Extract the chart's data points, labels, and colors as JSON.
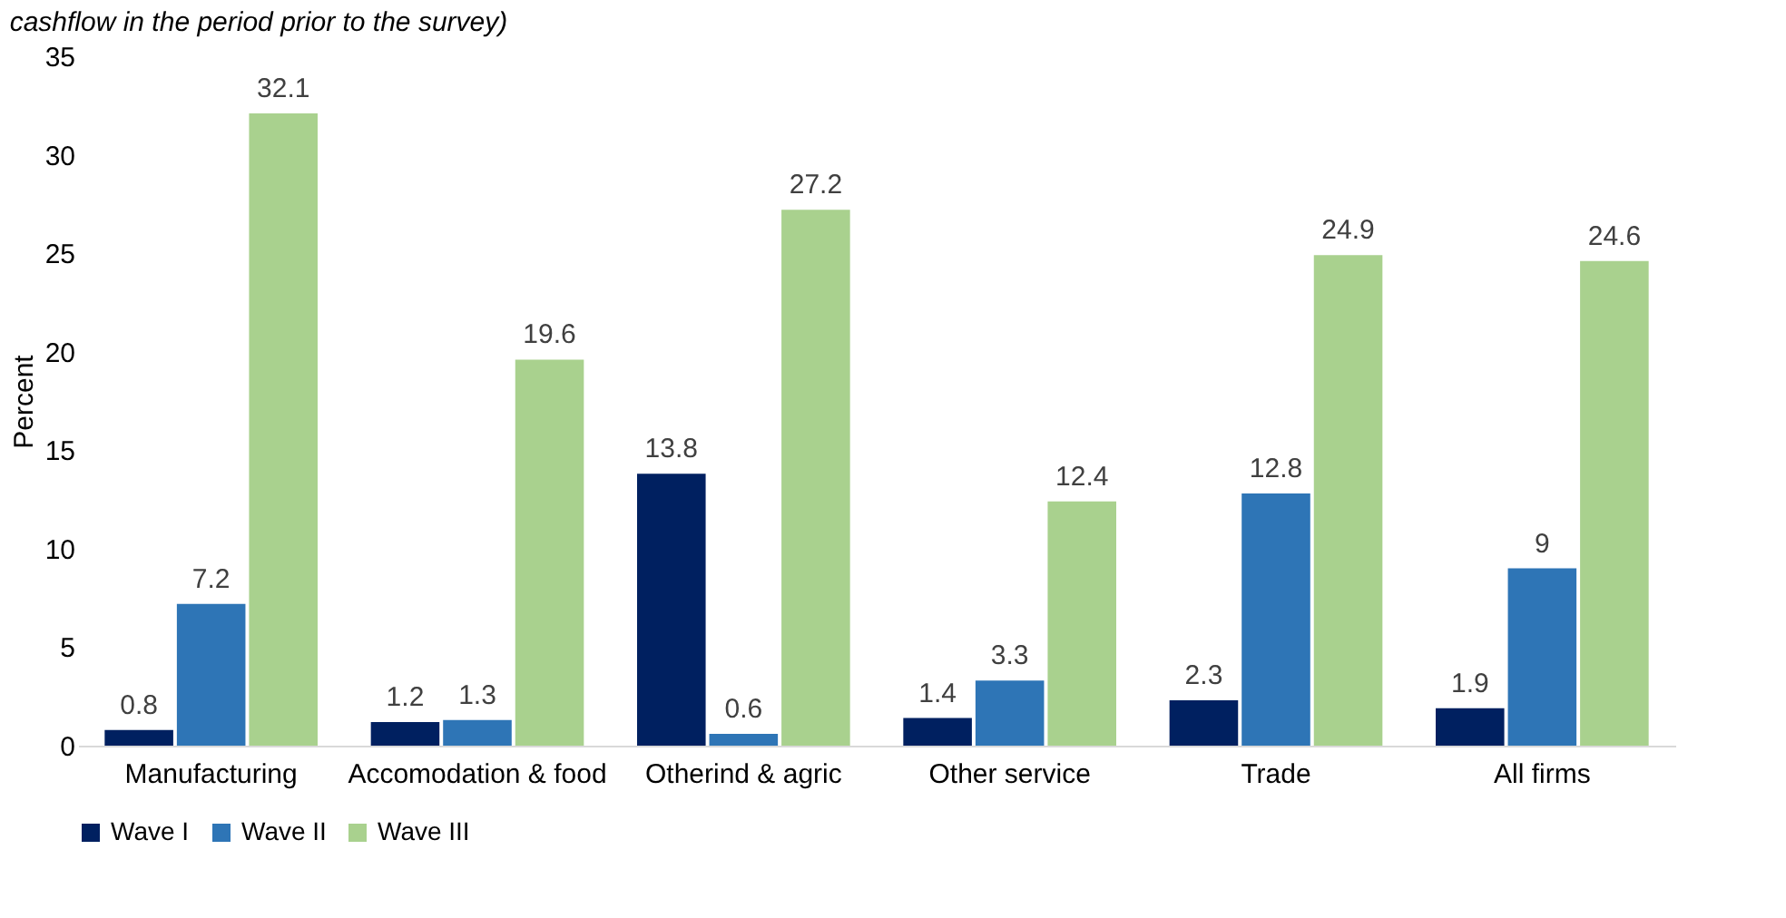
{
  "chart_data": {
    "type": "bar",
    "title": "cashflow in the period prior to the survey)",
    "ylabel": "Percent",
    "categories": [
      "Manufacturing",
      "Accomodation & food",
      "Otherind & agric",
      "Other service",
      "Trade",
      "All firms"
    ],
    "series": [
      {
        "name": "Wave I",
        "color": "#002060",
        "values": [
          0.8,
          1.2,
          13.8,
          1.4,
          2.3,
          1.9
        ]
      },
      {
        "name": "Wave II",
        "color": "#2e75b6",
        "values": [
          7.2,
          1.3,
          0.6,
          3.3,
          12.8,
          9
        ]
      },
      {
        "name": "Wave III",
        "color": "#a9d18e",
        "values": [
          32.1,
          19.6,
          27.2,
          12.4,
          24.9,
          24.6
        ]
      }
    ],
    "ylim": [
      0,
      35
    ],
    "yticks": [
      0,
      5,
      10,
      15,
      20,
      25,
      30,
      35
    ],
    "grid": false,
    "legend": "bottom",
    "data_labels": true
  }
}
